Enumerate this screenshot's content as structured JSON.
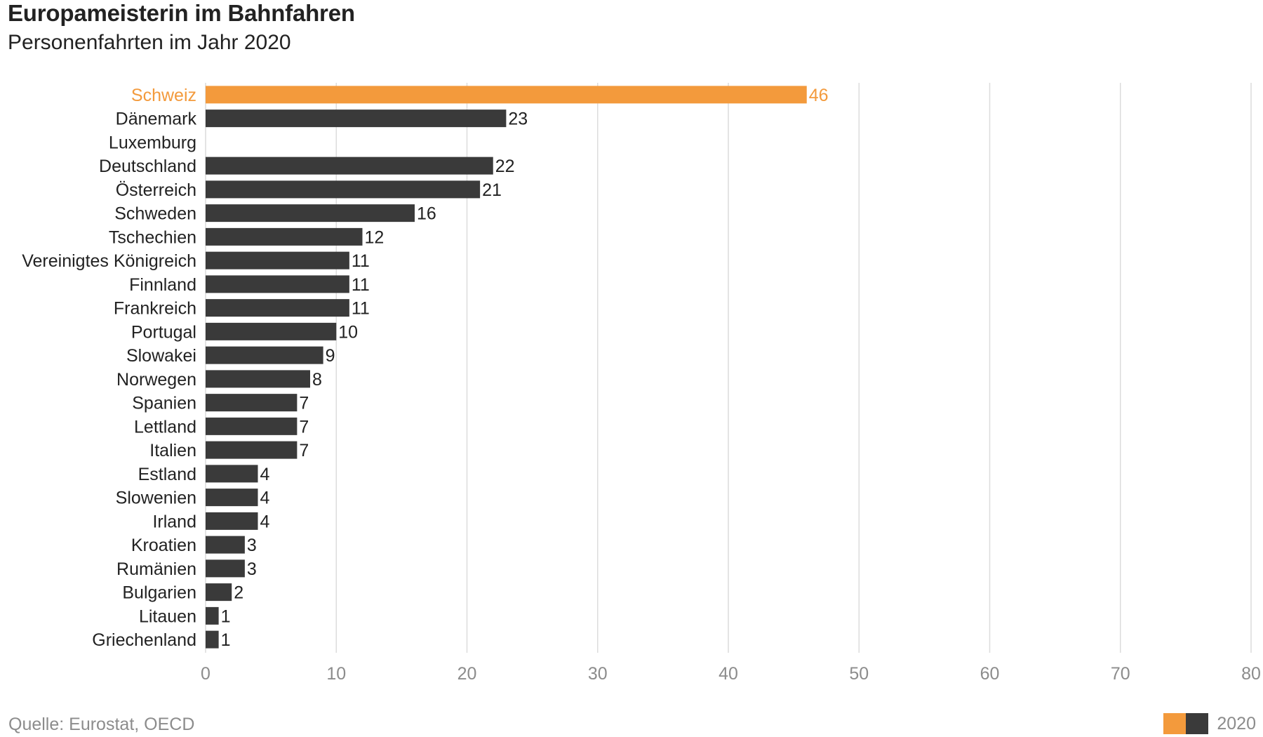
{
  "title": "Europameisterin im Bahnfahren",
  "subtitle": "Personenfahrten im Jahr 2020",
  "source": "Quelle: Eurostat, OECD",
  "legend": {
    "label": "2020",
    "swatches": [
      "#f39a3c",
      "#3a3a3a"
    ]
  },
  "colors": {
    "highlight": "#f39a3c",
    "bar": "#3a3a3a",
    "grid": "#dcdcdc",
    "tick_text": "#8c8c8c",
    "label_text": "#222222"
  },
  "chart_data": {
    "type": "bar",
    "orientation": "horizontal",
    "categories": [
      "Schweiz",
      "Dänemark",
      "Luxemburg",
      "Deutschland",
      "Österreich",
      "Schweden",
      "Tschechien",
      "Vereinigtes Königreich",
      "Finnland",
      "Frankreich",
      "Portugal",
      "Slowakei",
      "Norwegen",
      "Spanien",
      "Lettland",
      "Italien",
      "Estland",
      "Slowenien",
      "Irland",
      "Kroatien",
      "Rumänien",
      "Bulgarien",
      "Litauen",
      "Griechenland"
    ],
    "values": [
      46,
      23,
      null,
      22,
      21,
      16,
      12,
      11,
      11,
      11,
      10,
      9,
      8,
      7,
      7,
      7,
      4,
      4,
      4,
      3,
      3,
      2,
      1,
      1
    ],
    "highlight": [
      "Schweiz"
    ],
    "xlim": [
      0,
      80
    ],
    "xticks": [
      0,
      10,
      20,
      30,
      40,
      50,
      60,
      70,
      80
    ],
    "grid": true,
    "legend_position": "bottom-right",
    "series": [
      {
        "name": "2020"
      }
    ]
  }
}
